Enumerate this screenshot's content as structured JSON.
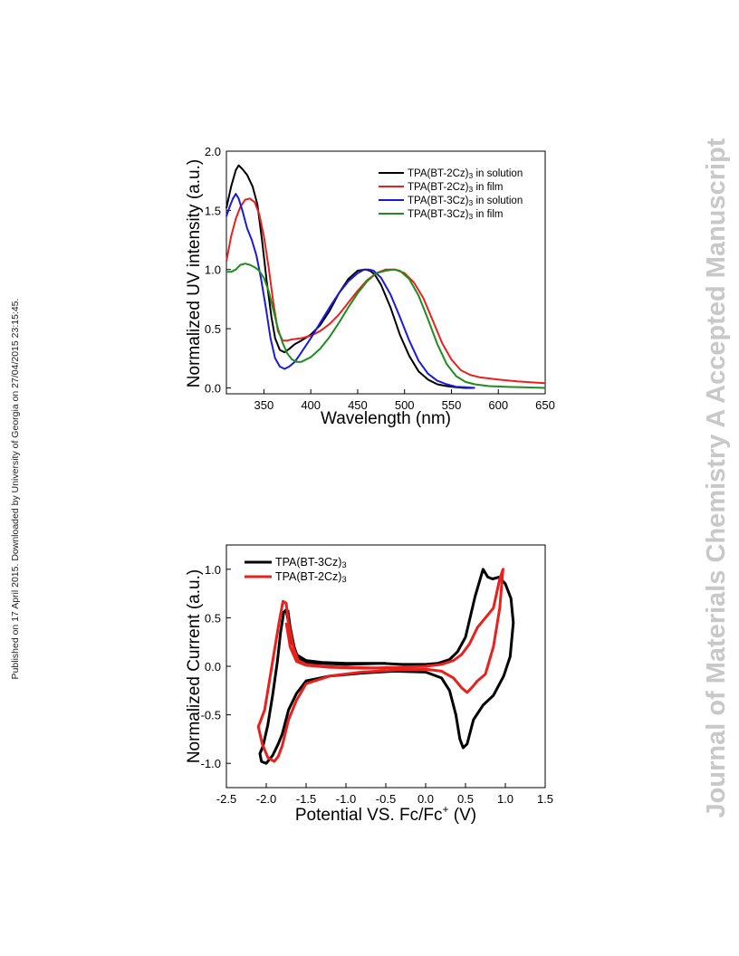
{
  "page": {
    "side_note": "Published on 17 April 2015. Downloaded by University of Georgia on 27/04/2015 23:15:45.",
    "watermark": "Journal of Materials Chemistry A Accepted Manuscript"
  },
  "chart_data": [
    {
      "type": "line",
      "xlabel": "Wavelength (nm)",
      "ylabel": "Normalized UV  intensity (a.u.)",
      "xlim": [
        310,
        650
      ],
      "ylim": [
        -0.05,
        2.0
      ],
      "xticks": [
        350,
        400,
        450,
        500,
        550,
        600,
        650
      ],
      "yticks": [
        0.0,
        0.5,
        1.0,
        1.5,
        2.0
      ],
      "ytick_labels": [
        "0.0",
        "0.5",
        "1.0",
        "1.5",
        "2.0"
      ],
      "legend_position": "top-right",
      "series": [
        {
          "name": "TPA(BT-2Cz)3 in solution",
          "legend_main": "TPA(BT-2Cz)",
          "legend_sub": "3",
          "legend_tail": " in solution",
          "color": "#000000",
          "x": [
            310,
            315,
            320,
            323,
            327,
            332,
            338,
            343,
            348,
            353,
            358,
            362,
            367,
            372,
            377,
            383,
            390,
            400,
            410,
            420,
            430,
            440,
            450,
            458,
            463,
            468,
            475,
            485,
            495,
            505,
            515,
            525,
            535,
            545,
            555,
            565,
            575
          ],
          "y": [
            1.52,
            1.7,
            1.84,
            1.88,
            1.85,
            1.8,
            1.7,
            1.55,
            1.25,
            0.9,
            0.6,
            0.42,
            0.32,
            0.3,
            0.33,
            0.37,
            0.4,
            0.45,
            0.53,
            0.65,
            0.8,
            0.92,
            0.99,
            1.0,
            0.99,
            0.96,
            0.87,
            0.68,
            0.45,
            0.27,
            0.14,
            0.07,
            0.03,
            0.015,
            0.005,
            0.0,
            0.0
          ]
        },
        {
          "name": "TPA(BT-2Cz)3 in film",
          "legend_main": "TPA(BT-2Cz)",
          "legend_sub": "3",
          "legend_tail": " in film",
          "color": "#e8211d",
          "x": [
            310,
            315,
            320,
            325,
            330,
            335,
            340,
            345,
            350,
            355,
            360,
            365,
            370,
            375,
            380,
            390,
            400,
            410,
            420,
            430,
            440,
            450,
            460,
            470,
            480,
            490,
            500,
            510,
            520,
            530,
            540,
            550,
            560,
            570,
            580,
            600,
            620,
            640,
            650
          ],
          "y": [
            1.07,
            1.28,
            1.43,
            1.53,
            1.59,
            1.6,
            1.57,
            1.47,
            1.28,
            1.02,
            0.72,
            0.48,
            0.4,
            0.4,
            0.41,
            0.42,
            0.44,
            0.48,
            0.54,
            0.62,
            0.72,
            0.82,
            0.91,
            0.97,
            1.0,
            1.0,
            0.97,
            0.89,
            0.76,
            0.57,
            0.38,
            0.24,
            0.15,
            0.11,
            0.09,
            0.07,
            0.055,
            0.045,
            0.04
          ]
        },
        {
          "name": "TPA(BT-3Cz)3 in solution",
          "legend_main": "TPA(BT-3Cz)",
          "legend_sub": "3",
          "legend_tail": " in solution",
          "color": "#1a1adb",
          "x": [
            310,
            313,
            317,
            320,
            323,
            327,
            332,
            337,
            342,
            347,
            352,
            357,
            362,
            367,
            372,
            377,
            383,
            390,
            400,
            410,
            420,
            430,
            440,
            450,
            457,
            462,
            467,
            475,
            485,
            495,
            505,
            515,
            525,
            535,
            545,
            555,
            565,
            575
          ],
          "y": [
            1.45,
            1.52,
            1.6,
            1.64,
            1.6,
            1.5,
            1.35,
            1.25,
            1.12,
            0.92,
            0.68,
            0.42,
            0.25,
            0.18,
            0.16,
            0.18,
            0.22,
            0.3,
            0.42,
            0.55,
            0.68,
            0.8,
            0.9,
            0.97,
            1.0,
            1.0,
            0.99,
            0.93,
            0.79,
            0.6,
            0.4,
            0.23,
            0.12,
            0.06,
            0.03,
            0.01,
            0.005,
            0.0
          ]
        },
        {
          "name": "TPA(BT-3Cz)3 in film",
          "legend_main": "TPA(BT-3Cz)",
          "legend_sub": "3",
          "legend_tail": " in film",
          "color": "#1e8c1e",
          "x": [
            310,
            315,
            320,
            325,
            330,
            335,
            340,
            345,
            350,
            355,
            360,
            365,
            370,
            375,
            380,
            385,
            390,
            400,
            410,
            420,
            430,
            440,
            450,
            460,
            470,
            480,
            488,
            495,
            505,
            515,
            525,
            535,
            545,
            555,
            565,
            575,
            590,
            610,
            630,
            650
          ],
          "y": [
            0.98,
            0.98,
            1.0,
            1.04,
            1.05,
            1.04,
            1.02,
            0.99,
            0.93,
            0.82,
            0.66,
            0.5,
            0.38,
            0.29,
            0.24,
            0.22,
            0.22,
            0.26,
            0.33,
            0.43,
            0.55,
            0.68,
            0.8,
            0.9,
            0.97,
            0.99,
            1.0,
            0.99,
            0.92,
            0.78,
            0.58,
            0.37,
            0.2,
            0.1,
            0.05,
            0.03,
            0.015,
            0.008,
            0.004,
            0.0
          ]
        }
      ]
    },
    {
      "type": "line",
      "xlabel": "Potential VS. Fc/Fc",
      "xlabel_sup": "+",
      "xlabel_tail": " (V)",
      "ylabel": "Normalized Current (a.u.)",
      "xlim": [
        -2.5,
        1.5
      ],
      "ylim": [
        -1.25,
        1.25
      ],
      "xticks": [
        -2.5,
        -2.0,
        -1.5,
        -1.0,
        -0.5,
        0.0,
        0.5,
        1.0,
        1.5
      ],
      "xtick_labels": [
        "-2.5",
        "-2.0",
        "-1.5",
        "-1.0",
        "-0.5",
        "0.0",
        "0.5",
        "1.0",
        "1.5"
      ],
      "yticks": [
        -1.0,
        -0.5,
        0.0,
        0.5,
        1.0
      ],
      "ytick_labels": [
        "-1.0",
        "-0.5",
        "0.0",
        "0.5",
        "1.0"
      ],
      "legend_position": "top-left",
      "series": [
        {
          "name": "TPA(BT-3Cz)3",
          "legend_main": "TPA(BT-3Cz)",
          "legend_sub": "3",
          "legend_tail": "",
          "color": "#000000",
          "x": [
            -0.5,
            -1.0,
            -1.3,
            -1.5,
            -1.62,
            -1.68,
            -1.72,
            -1.75,
            -1.78,
            -1.82,
            -1.86,
            -1.92,
            -1.98,
            -2.04,
            -2.08,
            -2.06,
            -2.0,
            -1.92,
            -1.85,
            -1.8,
            -1.72,
            -1.62,
            -1.5,
            -1.2,
            -0.8,
            -0.4,
            0.0,
            0.2,
            0.3,
            0.38,
            0.43,
            0.47,
            0.52,
            0.6,
            0.72,
            0.85,
            0.98,
            1.06,
            1.1,
            1.07,
            1.0,
            0.92,
            0.84,
            0.78,
            0.72,
            0.62,
            0.5,
            0.4,
            0.3,
            0.15,
            0.0,
            -0.3,
            -0.55,
            -1.0,
            -1.3,
            -1.5,
            -1.6,
            -1.65,
            -1.7,
            -1.73
          ],
          "y": [
            0.03,
            0.03,
            0.04,
            0.06,
            0.12,
            0.25,
            0.45,
            0.58,
            0.56,
            0.35,
            0.05,
            -0.3,
            -0.6,
            -0.82,
            -0.9,
            -0.98,
            -1.0,
            -0.92,
            -0.8,
            -0.7,
            -0.45,
            -0.28,
            -0.15,
            -0.1,
            -0.07,
            -0.05,
            -0.06,
            -0.12,
            -0.25,
            -0.5,
            -0.75,
            -0.84,
            -0.8,
            -0.55,
            -0.4,
            -0.3,
            -0.1,
            0.1,
            0.45,
            0.7,
            0.85,
            0.92,
            0.9,
            0.92,
            1.0,
            0.72,
            0.3,
            0.15,
            0.07,
            0.03,
            0.02,
            0.02,
            0.03,
            0.02,
            0.03,
            0.03,
            0.08,
            0.2,
            0.4,
            0.58
          ]
        },
        {
          "name": "TPA(BT-2Cz)3",
          "legend_main": "TPA(BT-2Cz)",
          "legend_sub": "3",
          "legend_tail": "",
          "color": "#e8211d",
          "x": [
            -0.5,
            -1.0,
            -1.3,
            -1.5,
            -1.6,
            -1.66,
            -1.72,
            -1.75,
            -1.79,
            -1.84,
            -1.9,
            -1.96,
            -2.02,
            -2.08,
            -2.1,
            -2.05,
            -1.98,
            -1.9,
            -1.85,
            -1.8,
            -1.72,
            -1.62,
            -1.5,
            -1.2,
            -0.8,
            -0.4,
            0.0,
            0.2,
            0.35,
            0.45,
            0.52,
            0.58,
            0.65,
            0.75,
            0.85,
            0.93,
            0.97,
            0.93,
            0.85,
            0.75,
            0.65,
            0.55,
            0.45,
            0.35,
            0.2,
            0.0,
            -0.3,
            -0.8,
            -1.2,
            -1.5,
            -1.62,
            -1.7,
            -1.75
          ],
          "y": [
            -0.02,
            -0.01,
            0.0,
            0.02,
            0.06,
            0.2,
            0.45,
            0.65,
            0.67,
            0.45,
            0.15,
            -0.15,
            -0.45,
            -0.58,
            -0.62,
            -0.8,
            -0.94,
            -0.98,
            -0.93,
            -0.82,
            -0.55,
            -0.35,
            -0.18,
            -0.1,
            -0.06,
            -0.04,
            -0.03,
            -0.05,
            -0.12,
            -0.22,
            -0.27,
            -0.22,
            -0.15,
            -0.08,
            0.2,
            0.6,
            1.0,
            0.9,
            0.6,
            0.5,
            0.4,
            0.23,
            0.12,
            0.06,
            0.02,
            0.0,
            -0.01,
            -0.02,
            -0.01,
            0.01,
            0.05,
            0.2,
            0.45
          ]
        }
      ]
    }
  ]
}
